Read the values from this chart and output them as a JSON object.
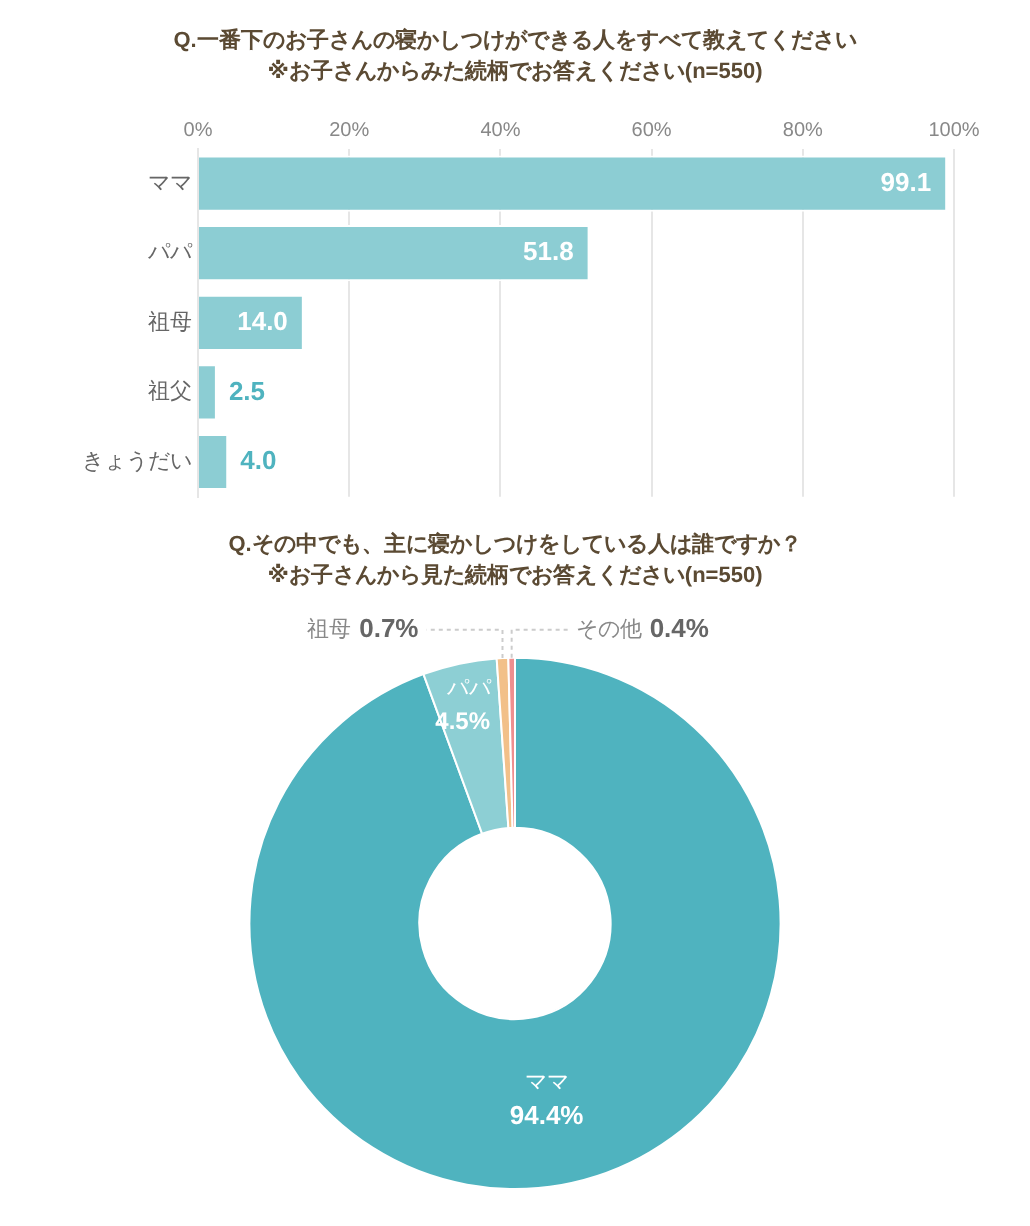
{
  "chart_data": [
    {
      "type": "bar",
      "orientation": "horizontal",
      "title": "Q.一番下のお子さんの寝かしつけができる人をすべて教えてください",
      "subtitle": "※お子さんからみた続柄でお答えください(n=550)",
      "categories": [
        "ママ",
        "パパ",
        "祖母",
        "祖父",
        "きょうだい"
      ],
      "values": [
        99.1,
        51.8,
        14.0,
        2.5,
        4.0
      ],
      "value_labels": [
        "99.1",
        "51.8",
        "14.0",
        "2.5",
        "4.0"
      ],
      "color": "#8ccdd3",
      "xlim": [
        0,
        100
      ],
      "xticks": [
        {
          "value": 0,
          "label": "0%"
        },
        {
          "value": 20,
          "label": "20%"
        },
        {
          "value": 40,
          "label": "40%"
        },
        {
          "value": 60,
          "label": "60%"
        },
        {
          "value": 80,
          "label": "80%"
        },
        {
          "value": 100,
          "label": "100%"
        }
      ],
      "grid": "x"
    },
    {
      "type": "donut",
      "title": "Q.その中でも、主に寝かしつけをしている人は誰ですか？",
      "subtitle": "※お子さんから見た続柄でお答えください(n=550)",
      "categories": [
        "ママ",
        "パパ",
        "祖母",
        "その他"
      ],
      "values": [
        94.4,
        4.5,
        0.7,
        0.4
      ],
      "value_labels": [
        "94.4%",
        "4.5%",
        "0.7%",
        "0.4%"
      ],
      "colors": [
        "#4fb3bf",
        "#8dcfd4",
        "#f2c089",
        "#ef8f8f"
      ]
    }
  ]
}
